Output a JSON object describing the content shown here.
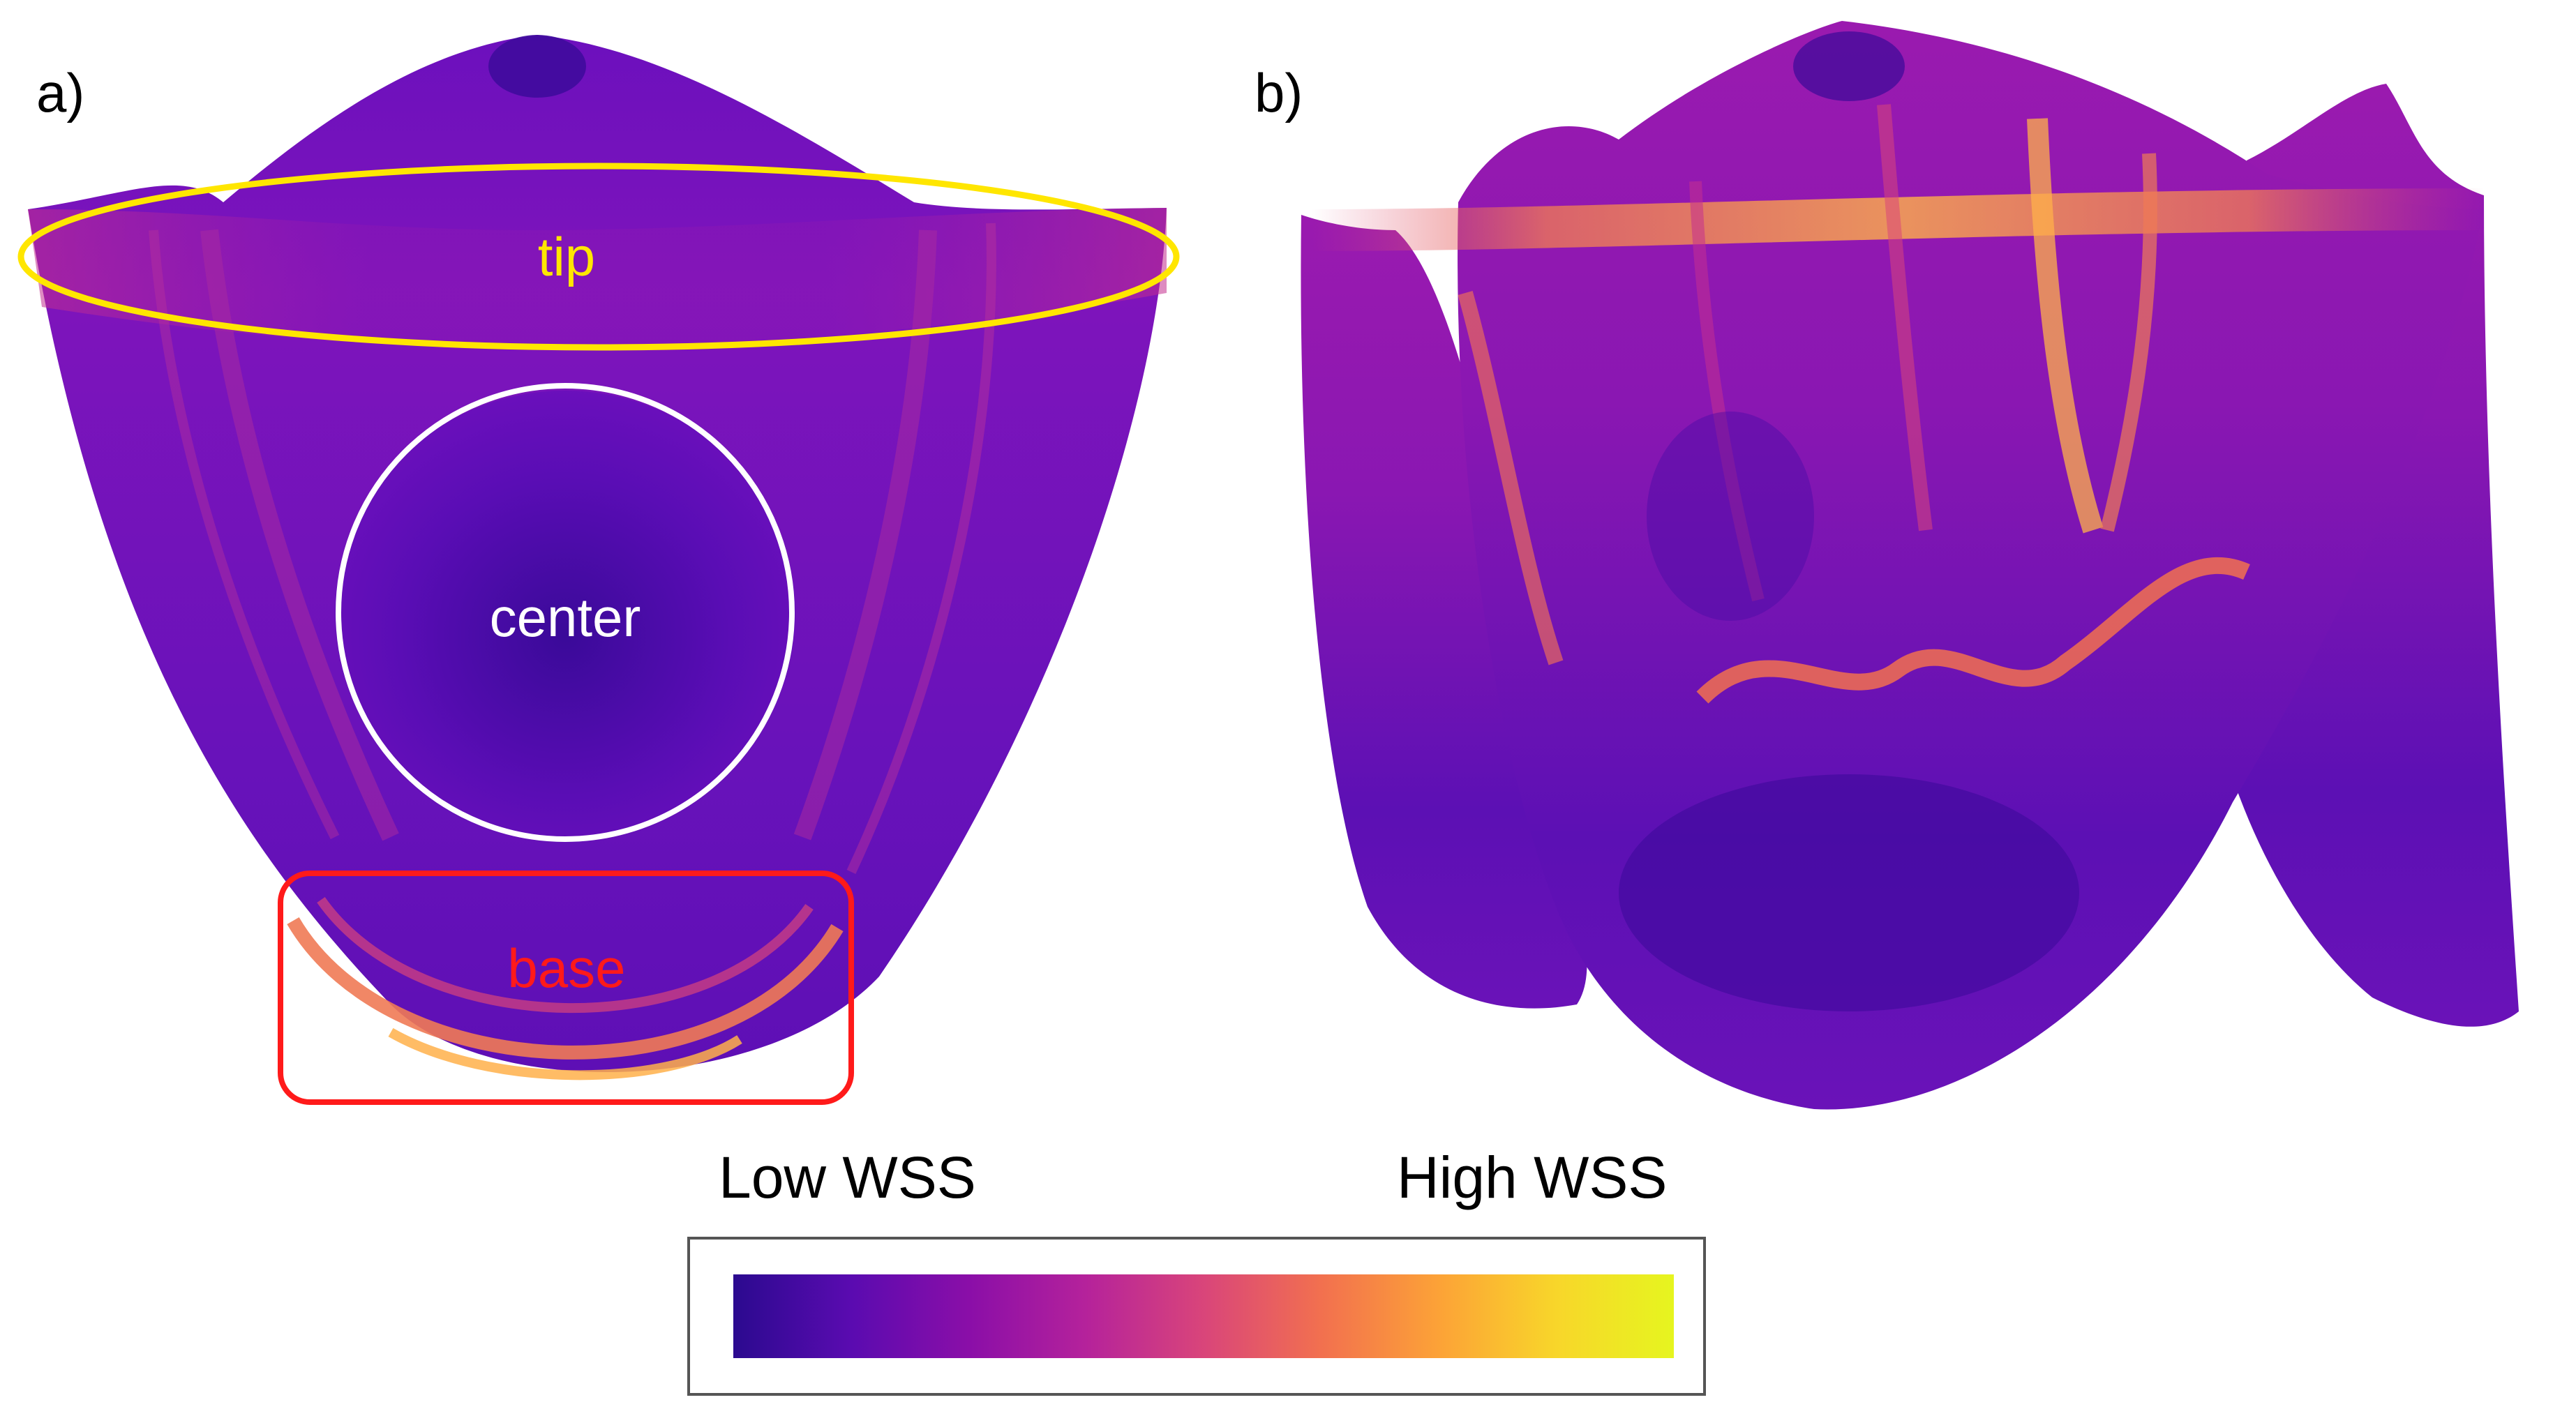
{
  "panels": {
    "a": {
      "label": "a)",
      "regions": [
        {
          "name": "tip",
          "color": "#ffe600"
        },
        {
          "name": "center",
          "color": "#ffffff"
        },
        {
          "name": "base",
          "color": "#ff1a1a"
        }
      ]
    },
    "b": {
      "label": "b)"
    }
  },
  "legend": {
    "low_label": "Low WSS",
    "high_label": "High WSS",
    "colormap": [
      "#2b0a8f",
      "#5a0bb0",
      "#8a0ea8",
      "#b5229b",
      "#d9457a",
      "#f2704f",
      "#fca237",
      "#f8d62a",
      "#e6f51f"
    ]
  }
}
